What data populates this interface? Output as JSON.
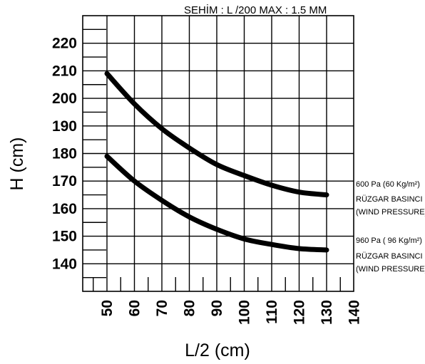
{
  "chart_data": {
    "type": "line",
    "header": "SEHİM :  L /200    MAX : 1.5 MM",
    "xlabel": "L/2  (cm)",
    "ylabel": "H (cm)",
    "xlim": [
      50,
      140
    ],
    "ylim": [
      130,
      230
    ],
    "x_ticks": [
      "50",
      "60",
      "70",
      "80",
      "90",
      "100",
      "110",
      "120",
      "130",
      "140"
    ],
    "y_ticks": [
      "140",
      "150",
      "160",
      "170",
      "180",
      "190",
      "200",
      "210",
      "220"
    ],
    "grid": true,
    "series": [
      {
        "legend": [
          "600 Pa (60 Kg/m²)",
          "RÜZGAR BASINCI",
          "(WIND PRESSURE)"
        ],
        "x": [
          50,
          60,
          70,
          80,
          90,
          100,
          110,
          120,
          130
        ],
        "y": [
          209,
          198,
          189,
          182,
          176,
          172,
          168.5,
          166,
          165
        ]
      },
      {
        "legend": [
          "960 Pa ( 96 Kg/m²)",
          "RÜZGAR BASINCI",
          "(WIND PRESSURE)"
        ],
        "x": [
          50,
          60,
          70,
          80,
          90,
          100,
          110,
          120,
          130
        ],
        "y": [
          179,
          170,
          163,
          157,
          152.5,
          149,
          147,
          145.5,
          145
        ]
      }
    ]
  }
}
